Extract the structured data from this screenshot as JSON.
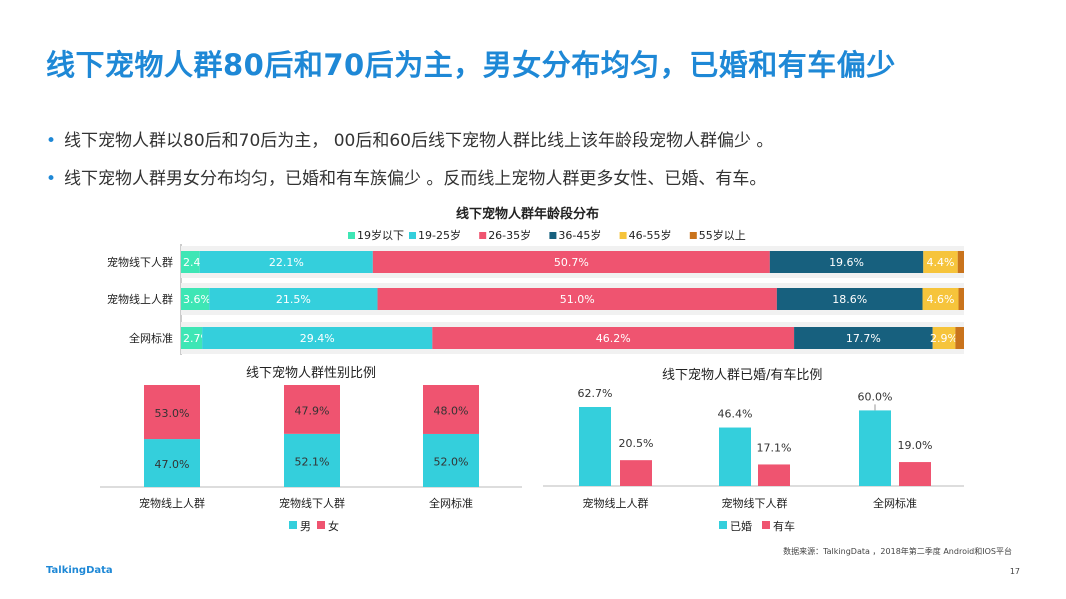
{
  "title": "线下宠物人群80后和70后为主，男女分布均匀，已婚和有车偏少",
  "bullets": [
    "线下宠物人群以80后和70后为主， 00后和60后线下宠物人群比线上该年龄段宠物人群偏少 。",
    "线下宠物人群男女分布均匀，已婚和有车族偏少 。反而线上宠物人群更多女性、已婚、有车。"
  ],
  "bullet_marker": "•",
  "colors": {
    "title": "#1e88d6",
    "teal_light": "#3ee6b5",
    "cyan": "#34cfdc",
    "pink": "#ef5470",
    "navy": "#17607e",
    "yellow": "#f6c43b",
    "orange": "#c9731c"
  },
  "chart_data": [
    {
      "type": "bar",
      "orientation": "horizontal",
      "stacked": true,
      "title": "线下宠物人群年龄段分布",
      "categories": [
        "宠物线下人群",
        "宠物线上人群",
        "全网标准"
      ],
      "series": [
        {
          "name": "19岁以下",
          "color": "#3ee6b5",
          "values": [
            2.4,
            3.6,
            2.7
          ],
          "labels": [
            "2.4%",
            "3.6%",
            "2.7%"
          ]
        },
        {
          "name": "19-25岁",
          "color": "#34cfdc",
          "values": [
            22.1,
            21.5,
            29.4
          ],
          "labels": [
            "22.1%",
            "21.5%",
            "29.4%"
          ]
        },
        {
          "name": "26-35岁",
          "color": "#ef5470",
          "values": [
            50.7,
            51.0,
            46.2
          ],
          "labels": [
            "50.7%",
            "51.0%",
            "46.2%"
          ]
        },
        {
          "name": "36-45岁",
          "color": "#17607e",
          "values": [
            19.6,
            18.6,
            17.7
          ],
          "labels": [
            "19.6%",
            "18.6%",
            "17.7%"
          ]
        },
        {
          "name": "46-55岁",
          "color": "#f6c43b",
          "values": [
            4.4,
            4.6,
            2.9
          ],
          "labels": [
            "4.4%",
            "4.6%",
            "2.9%"
          ]
        },
        {
          "name": "55岁以上",
          "color": "#c9731c",
          "values": [
            0.8,
            0.7,
            1.1
          ],
          "labels": [
            "",
            "",
            ""
          ]
        }
      ],
      "legend": "top"
    },
    {
      "type": "bar",
      "stacked": true,
      "title": "线下宠物人群性别比例",
      "categories": [
        "宠物线上人群",
        "宠物线下人群",
        "全网标准"
      ],
      "series": [
        {
          "name": "男",
          "color": "#34cfdc",
          "values": [
            47.0,
            52.1,
            52.0
          ],
          "labels": [
            "47.0%",
            "52.1%",
            "52.0%"
          ]
        },
        {
          "name": "女",
          "color": "#ef5470",
          "values": [
            53.0,
            47.9,
            48.0
          ],
          "labels": [
            "53.0%",
            "47.9%",
            "48.0%"
          ]
        }
      ],
      "legend": "bottom"
    },
    {
      "type": "bar",
      "stacked": false,
      "title": "线下宠物人群已婚/有车比例",
      "categories": [
        "宠物线上人群",
        "宠物线下人群",
        "全网标准"
      ],
      "series": [
        {
          "name": "已婚",
          "color": "#34cfdc",
          "values": [
            62.7,
            46.4,
            60.0
          ],
          "labels": [
            "62.7%",
            "46.4%",
            "60.0%"
          ]
        },
        {
          "name": "有车",
          "color": "#ef5470",
          "values": [
            20.5,
            17.1,
            19.0
          ],
          "labels": [
            "20.5%",
            "17.1%",
            "19.0%"
          ]
        }
      ],
      "legend": "bottom"
    }
  ],
  "footer": {
    "logo": "TalkingData",
    "source": "数据来源：TalkingData ，2018年第二季度 Android和IOS平台",
    "page": "17"
  }
}
